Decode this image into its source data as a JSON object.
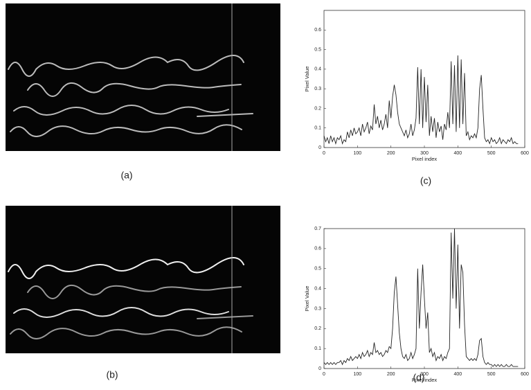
{
  "images": [
    {
      "caption": "(a)"
    },
    {
      "caption": "(b)"
    }
  ],
  "chart_data": [
    {
      "type": "line",
      "caption": "(c)",
      "xlabel": "Pixel index",
      "ylabel": "Pixel Value",
      "color": "#222222",
      "xlim": [
        0,
        600
      ],
      "xticks": [
        0,
        100,
        200,
        300,
        400,
        500,
        600
      ],
      "ylim": [
        0,
        0.7
      ],
      "yticks": [
        0,
        0.1,
        0.2,
        0.3,
        0.4,
        0.5,
        0.6
      ],
      "x": [
        0,
        5,
        10,
        15,
        20,
        25,
        30,
        35,
        40,
        45,
        50,
        55,
        60,
        65,
        70,
        75,
        80,
        85,
        90,
        95,
        100,
        105,
        110,
        115,
        120,
        125,
        130,
        135,
        140,
        145,
        150,
        155,
        160,
        165,
        170,
        175,
        180,
        185,
        190,
        195,
        200,
        205,
        210,
        215,
        220,
        225,
        230,
        235,
        240,
        245,
        250,
        255,
        260,
        265,
        270,
        275,
        280,
        285,
        290,
        295,
        300,
        305,
        310,
        315,
        320,
        325,
        330,
        335,
        340,
        345,
        350,
        355,
        360,
        365,
        370,
        375,
        380,
        385,
        390,
        395,
        400,
        405,
        410,
        415,
        420,
        425,
        430,
        435,
        440,
        445,
        450,
        455,
        460,
        465,
        470,
        475,
        480,
        485,
        490,
        495,
        500,
        505,
        510,
        515,
        520,
        525,
        530,
        535,
        540,
        545,
        550,
        555,
        560,
        565,
        570,
        575,
        580
      ],
      "values": [
        0.06,
        0.03,
        0.05,
        0.02,
        0.06,
        0.03,
        0.05,
        0.02,
        0.05,
        0.04,
        0.06,
        0.02,
        0.04,
        0.03,
        0.08,
        0.05,
        0.09,
        0.06,
        0.1,
        0.07,
        0.08,
        0.1,
        0.06,
        0.12,
        0.08,
        0.1,
        0.13,
        0.07,
        0.11,
        0.09,
        0.22,
        0.12,
        0.16,
        0.1,
        0.14,
        0.09,
        0.12,
        0.17,
        0.1,
        0.24,
        0.15,
        0.26,
        0.32,
        0.27,
        0.18,
        0.12,
        0.1,
        0.08,
        0.06,
        0.09,
        0.05,
        0.07,
        0.12,
        0.06,
        0.09,
        0.15,
        0.41,
        0.12,
        0.4,
        0.1,
        0.36,
        0.13,
        0.32,
        0.06,
        0.16,
        0.08,
        0.15,
        0.05,
        0.13,
        0.08,
        0.11,
        0.04,
        0.12,
        0.09,
        0.18,
        0.1,
        0.44,
        0.12,
        0.42,
        0.08,
        0.47,
        0.1,
        0.45,
        0.12,
        0.38,
        0.06,
        0.08,
        0.04,
        0.06,
        0.05,
        0.07,
        0.05,
        0.1,
        0.3,
        0.37,
        0.2,
        0.05,
        0.03,
        0.04,
        0.02,
        0.05,
        0.03,
        0.04,
        0.02,
        0.03,
        0.05,
        0.02,
        0.04,
        0.03,
        0.02,
        0.04,
        0.03,
        0.05,
        0.02,
        0.03,
        0.02,
        0.02
      ]
    },
    {
      "type": "line",
      "caption": "(d)",
      "xlabel": "Pixel index",
      "ylabel": "Pixel Value",
      "color": "#222222",
      "xlim": [
        0,
        600
      ],
      "xticks": [
        0,
        100,
        200,
        300,
        400,
        500,
        600
      ],
      "ylim": [
        0,
        0.7
      ],
      "yticks": [
        0,
        0.1,
        0.2,
        0.3,
        0.4,
        0.5,
        0.6,
        0.7
      ],
      "x": [
        0,
        5,
        10,
        15,
        20,
        25,
        30,
        35,
        40,
        45,
        50,
        55,
        60,
        65,
        70,
        75,
        80,
        85,
        90,
        95,
        100,
        105,
        110,
        115,
        120,
        125,
        130,
        135,
        140,
        145,
        150,
        155,
        160,
        165,
        170,
        175,
        180,
        185,
        190,
        195,
        200,
        205,
        210,
        215,
        220,
        225,
        230,
        235,
        240,
        245,
        250,
        255,
        260,
        265,
        270,
        275,
        280,
        285,
        290,
        295,
        300,
        305,
        310,
        315,
        320,
        325,
        330,
        335,
        340,
        345,
        350,
        355,
        360,
        365,
        370,
        375,
        380,
        385,
        390,
        395,
        400,
        405,
        410,
        415,
        420,
        425,
        430,
        435,
        440,
        445,
        450,
        455,
        460,
        465,
        470,
        475,
        480,
        485,
        490,
        495,
        500,
        505,
        510,
        515,
        520,
        525,
        530,
        535,
        540,
        545,
        550,
        555,
        560,
        565,
        570,
        575,
        580
      ],
      "values": [
        0.03,
        0.02,
        0.03,
        0.02,
        0.03,
        0.02,
        0.03,
        0.02,
        0.03,
        0.03,
        0.04,
        0.02,
        0.04,
        0.03,
        0.05,
        0.04,
        0.06,
        0.04,
        0.05,
        0.06,
        0.05,
        0.07,
        0.05,
        0.08,
        0.06,
        0.07,
        0.09,
        0.06,
        0.08,
        0.07,
        0.13,
        0.08,
        0.09,
        0.07,
        0.08,
        0.06,
        0.07,
        0.09,
        0.08,
        0.11,
        0.1,
        0.2,
        0.38,
        0.46,
        0.32,
        0.18,
        0.1,
        0.06,
        0.05,
        0.07,
        0.04,
        0.05,
        0.08,
        0.05,
        0.07,
        0.1,
        0.5,
        0.2,
        0.38,
        0.52,
        0.35,
        0.2,
        0.28,
        0.08,
        0.1,
        0.06,
        0.08,
        0.04,
        0.06,
        0.05,
        0.07,
        0.04,
        0.06,
        0.05,
        0.08,
        0.1,
        0.68,
        0.35,
        0.7,
        0.3,
        0.62,
        0.2,
        0.52,
        0.48,
        0.22,
        0.06,
        0.05,
        0.04,
        0.05,
        0.04,
        0.05,
        0.04,
        0.07,
        0.14,
        0.15,
        0.06,
        0.03,
        0.02,
        0.03,
        0.02,
        0.02,
        0.01,
        0.02,
        0.01,
        0.02,
        0.01,
        0.02,
        0.01,
        0.01,
        0.02,
        0.01,
        0.01,
        0.02,
        0.01,
        0.01,
        0.01,
        0.01
      ]
    }
  ]
}
